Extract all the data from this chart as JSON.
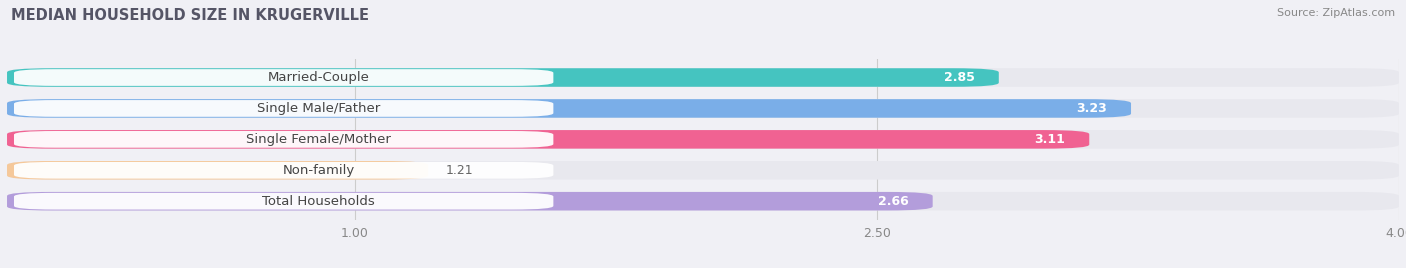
{
  "title": "MEDIAN HOUSEHOLD SIZE IN KRUGERVILLE",
  "source": "Source: ZipAtlas.com",
  "categories": [
    "Married-Couple",
    "Single Male/Father",
    "Single Female/Mother",
    "Non-family",
    "Total Households"
  ],
  "values": [
    2.85,
    3.23,
    3.11,
    1.21,
    2.66
  ],
  "bar_colors": [
    "#45c4c0",
    "#7aaee8",
    "#f06292",
    "#f5c89a",
    "#b39ddb"
  ],
  "value_colors": [
    "white",
    "white",
    "white",
    "#888888",
    "white"
  ],
  "xlim": [
    0,
    4.0
  ],
  "xticks": [
    1.0,
    2.5,
    4.0
  ],
  "label_fontsize": 9.5,
  "value_fontsize": 9,
  "title_fontsize": 10.5,
  "bg_color": "#f0f0f5",
  "bar_bg_color": "#e8e8ee",
  "label_text_color": "#444444"
}
